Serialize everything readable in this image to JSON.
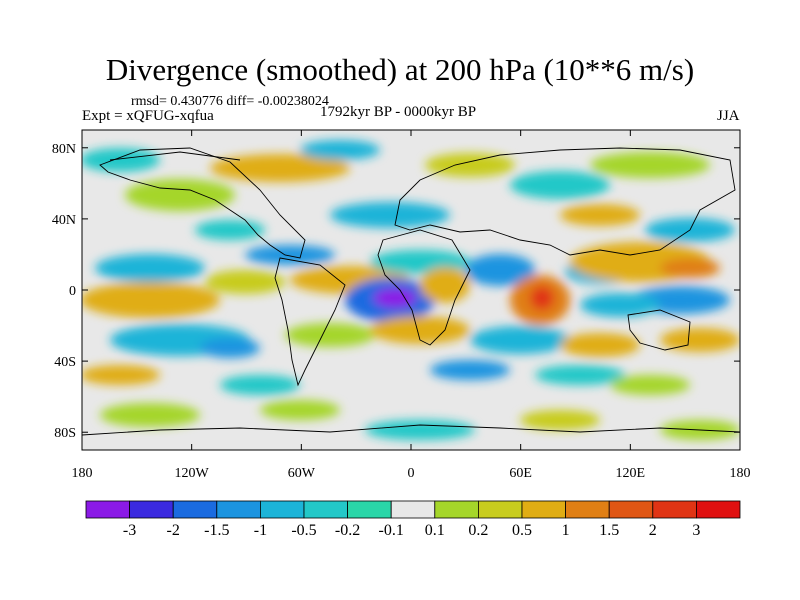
{
  "figure": {
    "title": "Divergence (smoothed) at 200 hPa (10**6 m/s)",
    "stats": "rmsd= 0.430776 diff= -0.00238024",
    "experiment": "Expt = xQFUG-xqfua",
    "period": "1792kyr BP - 0000kyr BP",
    "season": "JJA"
  },
  "chart_data": {
    "type": "heatmap",
    "title": "Divergence (smoothed) at 200 hPa (10**6 m/s)",
    "subtitle": "1792kyr BP - 0000kyr BP",
    "annotations": [
      "rmsd= 0.430776 diff= -0.00238024",
      "Expt = xQFUG-xqfua",
      "JJA"
    ],
    "projection": "cylindrical equidistant, global",
    "x_ticks": [
      {
        "value": -180,
        "label": "180"
      },
      {
        "value": -120,
        "label": "120W"
      },
      {
        "value": -60,
        "label": "60W"
      },
      {
        "value": 0,
        "label": "0"
      },
      {
        "value": 60,
        "label": "60E"
      },
      {
        "value": 120,
        "label": "120E"
      },
      {
        "value": 180,
        "label": "180"
      }
    ],
    "y_ticks": [
      {
        "value": 80,
        "label": "80N"
      },
      {
        "value": 40,
        "label": "40N"
      },
      {
        "value": 0,
        "label": "0"
      },
      {
        "value": -40,
        "label": "40S"
      },
      {
        "value": -80,
        "label": "80S"
      }
    ],
    "xlim": [
      -180,
      180
    ],
    "ylim": [
      -90,
      90
    ],
    "colorbar": {
      "labels": [
        "-3",
        "-2",
        "-1.5",
        "-1",
        "-0.5",
        "-0.2",
        "-0.1",
        "0.1",
        "0.2",
        "0.5",
        "1",
        "1.5",
        "2",
        "3"
      ],
      "colors": [
        "#8b1ae6",
        "#3b2ae0",
        "#1b6be0",
        "#1c94e0",
        "#1cb4d8",
        "#23c8c8",
        "#2ad6a8",
        "#e8e8e8",
        "#a5d62a",
        "#c8cc1e",
        "#e0ad14",
        "#e07f14",
        "#e05614",
        "#e03414",
        "#e01010"
      ]
    },
    "features": [
      {
        "name": "strong convergence",
        "lon": -18,
        "lat": 0,
        "value": -3
      },
      {
        "name": "strong divergence",
        "lon": 70,
        "lat": 2,
        "value": 2
      },
      {
        "name": "divergence band",
        "lon": -130,
        "lat": 0,
        "value": 1
      },
      {
        "name": "divergence band",
        "lon": 150,
        "lat": 15,
        "value": 1.5
      },
      {
        "name": "convergence band",
        "lon": 30,
        "lat": 15,
        "value": -1
      },
      {
        "name": "convergence band",
        "lon": -110,
        "lat": -25,
        "value": -1
      },
      {
        "name": "divergence band",
        "lon": 0,
        "lat": -30,
        "value": 0.5
      },
      {
        "name": "convergence band",
        "lon": 80,
        "lat": -15,
        "value": -1
      }
    ]
  }
}
